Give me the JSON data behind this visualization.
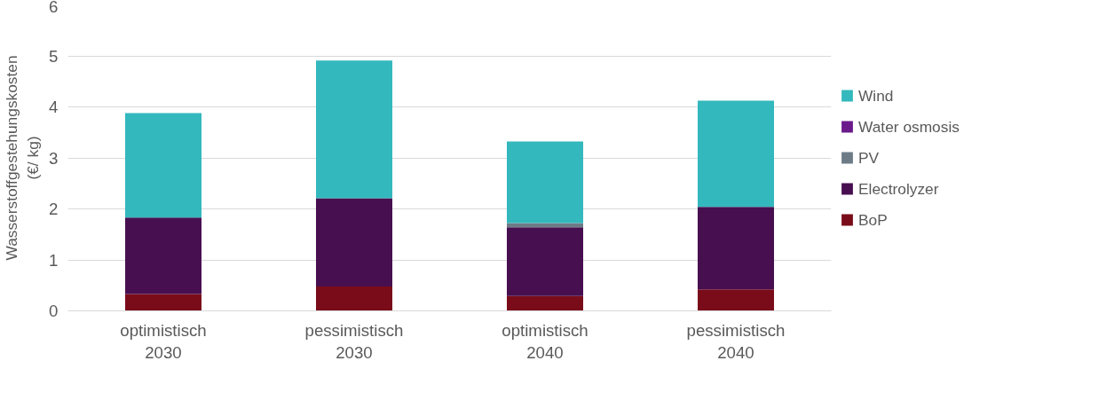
{
  "chart_data": {
    "type": "bar",
    "stacked": true,
    "ylabel": "Wasserstoffgestehungskosten\n(€/ kg)",
    "categories": [
      "optimistisch\n2030",
      "pessimistisch\n2030",
      "optimistisch\n2040",
      "pessimistisch\n2040"
    ],
    "series": [
      {
        "name": "BoP",
        "color": "#7a0c1a",
        "values": [
          0.33,
          0.48,
          0.29,
          0.42
        ]
      },
      {
        "name": "Electrolyzer",
        "color": "#470f50",
        "values": [
          1.5,
          1.73,
          1.35,
          1.62
        ]
      },
      {
        "name": "PV",
        "color": "#6d7b86",
        "values": [
          0,
          0,
          0.08,
          0
        ]
      },
      {
        "name": "Water osmosis",
        "color": "#6a1a8a",
        "values": [
          0,
          0,
          0,
          0
        ]
      },
      {
        "name": "Wind",
        "color": "#33b8bd",
        "values": [
          2.05,
          2.7,
          1.6,
          2.08
        ]
      }
    ],
    "ylim": [
      0,
      6
    ],
    "yticks": [
      0,
      1,
      2,
      3,
      4,
      5,
      6
    ],
    "grid": "y",
    "legend": "right"
  }
}
